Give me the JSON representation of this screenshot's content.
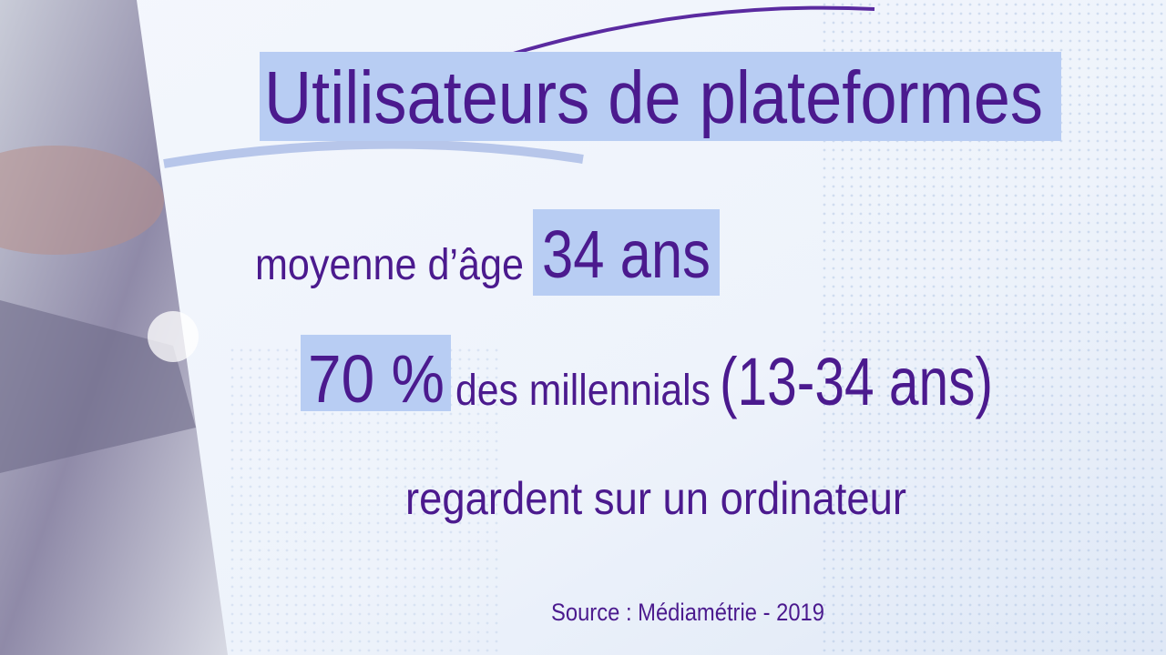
{
  "title": "Utilisateurs de plateformes",
  "lines": [
    {
      "label": "moyenne d’âge",
      "highlight": "34 ans"
    },
    {
      "highlight": "70 %",
      "label": "des millennials",
      "range": "(13-34 ans)"
    },
    {
      "label": "regardent sur un ordinateur"
    }
  ],
  "source": "Source : Médiamétrie - 2019"
}
